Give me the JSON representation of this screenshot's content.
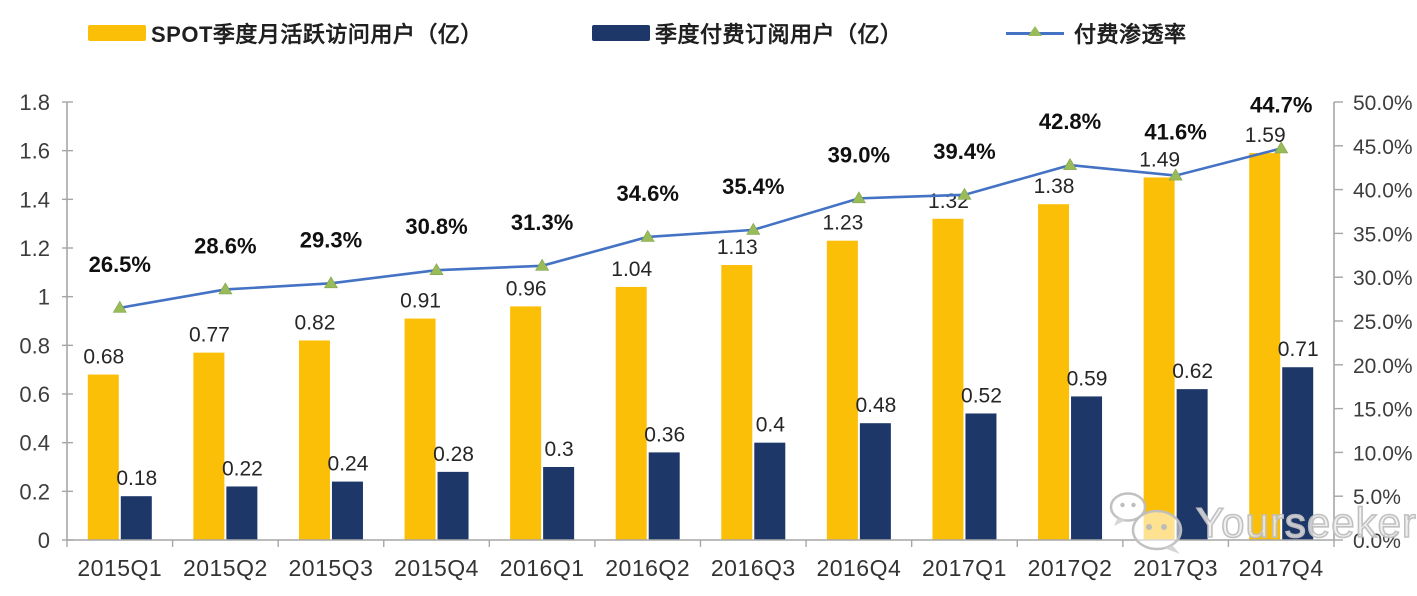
{
  "legend": {
    "items": [
      {
        "label": "SPOT季度月活跃访问用户（亿）",
        "swatch": "bar",
        "color": "#FCBF07"
      },
      {
        "label": "季度付费订阅用户（亿）",
        "swatch": "bar",
        "color": "#1C3768"
      },
      {
        "label": "付费渗透率",
        "swatch": "line",
        "color": "#4472C4",
        "marker_color": "#9ABB59"
      }
    ]
  },
  "chart_data": {
    "type": "combo bar+line",
    "categories": [
      "2015Q1",
      "2015Q2",
      "2015Q3",
      "2015Q4",
      "2016Q1",
      "2016Q2",
      "2016Q3",
      "2016Q4",
      "2017Q1",
      "2017Q2",
      "2017Q3",
      "2017Q4"
    ],
    "series": [
      {
        "name": "SPOT季度月活跃访问用户（亿）",
        "type": "bar",
        "axis": "left",
        "color": "#FCBF07",
        "values": [
          0.68,
          0.77,
          0.82,
          0.91,
          0.96,
          1.04,
          1.13,
          1.23,
          1.32,
          1.38,
          1.49,
          1.59
        ],
        "labels": [
          "0.68",
          "0.77",
          "0.82",
          "0.91",
          "0.96",
          "1.04",
          "1.13",
          "1.23",
          "1.32",
          "1.38",
          "1.49",
          "1.59"
        ]
      },
      {
        "name": "季度付费订阅用户（亿）",
        "type": "bar",
        "axis": "left",
        "color": "#1C3768",
        "values": [
          0.18,
          0.22,
          0.24,
          0.28,
          0.3,
          0.36,
          0.4,
          0.48,
          0.52,
          0.59,
          0.62,
          0.71
        ],
        "labels": [
          "0.18",
          "0.22",
          "0.24",
          "0.28",
          "0.3",
          "0.36",
          "0.4",
          "0.48",
          "0.52",
          "0.59",
          "0.62",
          "0.71"
        ]
      },
      {
        "name": "付费渗透率",
        "type": "line",
        "axis": "right",
        "color": "#4472C4",
        "marker": "triangle",
        "marker_color": "#9ABB59",
        "values": [
          26.5,
          28.6,
          29.3,
          30.8,
          31.3,
          34.6,
          35.4,
          39.0,
          39.4,
          42.8,
          41.6,
          44.7
        ],
        "labels": [
          "26.5%",
          "28.6%",
          "29.3%",
          "30.8%",
          "31.3%",
          "34.6%",
          "35.4%",
          "39.0%",
          "39.4%",
          "42.8%",
          "41.6%",
          "44.7%"
        ]
      }
    ],
    "left_axis": {
      "min": 0,
      "max": 1.8,
      "tick_labels": [
        "0",
        "0.2",
        "0.4",
        "0.6",
        "0.8",
        "1",
        "1.2",
        "1.4",
        "1.6",
        "1.8"
      ]
    },
    "right_axis": {
      "min": 0,
      "max": 50,
      "tick_labels": [
        "0.0%",
        "5.0%",
        "10.0%",
        "15.0%",
        "20.0%",
        "25.0%",
        "30.0%",
        "35.0%",
        "40.0%",
        "45.0%",
        "50.0%"
      ]
    },
    "grid": false,
    "legend_position": "top",
    "axis_color": "#A6A6A6"
  },
  "watermark": {
    "text": "Yourseeker"
  }
}
